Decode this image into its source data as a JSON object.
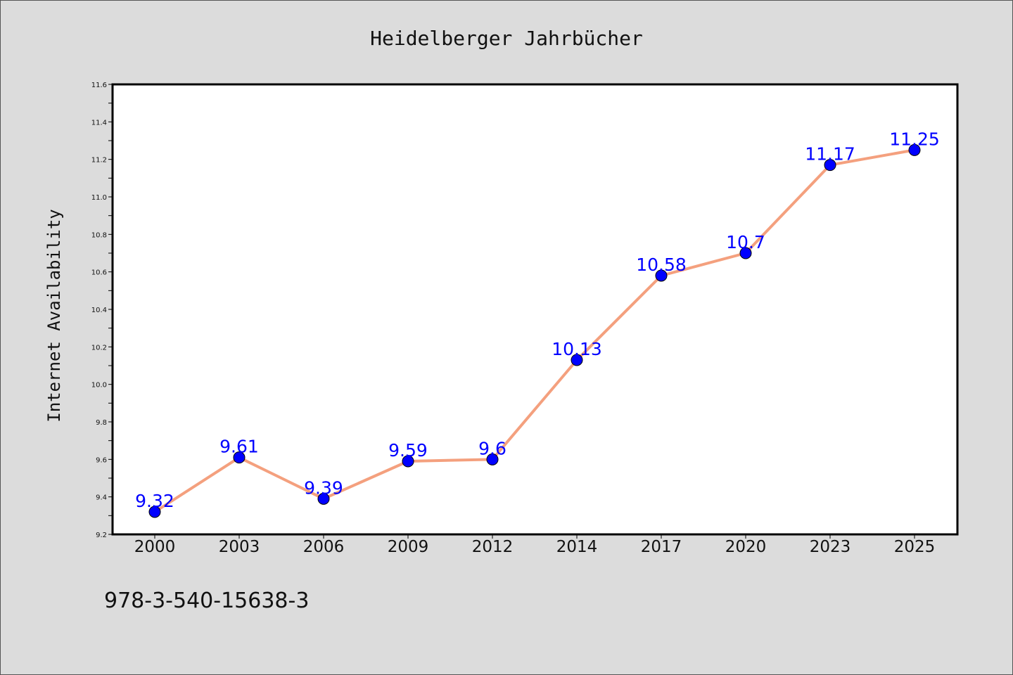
{
  "chart_data": {
    "type": "line",
    "title": "Heidelberger Jahrbücher",
    "xlabel": "",
    "ylabel": "Internet Availability",
    "categories": [
      "2000",
      "2003",
      "2006",
      "2009",
      "2012",
      "2014",
      "2017",
      "2020",
      "2023",
      "2025"
    ],
    "series": [
      {
        "values": [
          9.32,
          9.61,
          9.39,
          9.59,
          9.6,
          10.13,
          10.58,
          10.7,
          11.17,
          11.25
        ],
        "labels": [
          "9.32",
          "9.61",
          "9.39",
          "9.59",
          "9.6",
          "10.13",
          "10.58",
          "10.7",
          "11.17",
          "11.25"
        ]
      }
    ],
    "ylim": [
      9.2,
      11.6
    ],
    "yticks": [
      "9.2",
      "9.4",
      "9.6",
      "9.8",
      "10.0",
      "10.2",
      "10.4",
      "10.6",
      "10.8",
      "11.0",
      "11.2",
      "11.4",
      "11.6"
    ],
    "grid": false,
    "line_color": "#f4a07e",
    "marker_color": "#0000ff",
    "label_color": "#0000ff"
  },
  "footer": {
    "text": "978-3-540-15638-3"
  }
}
